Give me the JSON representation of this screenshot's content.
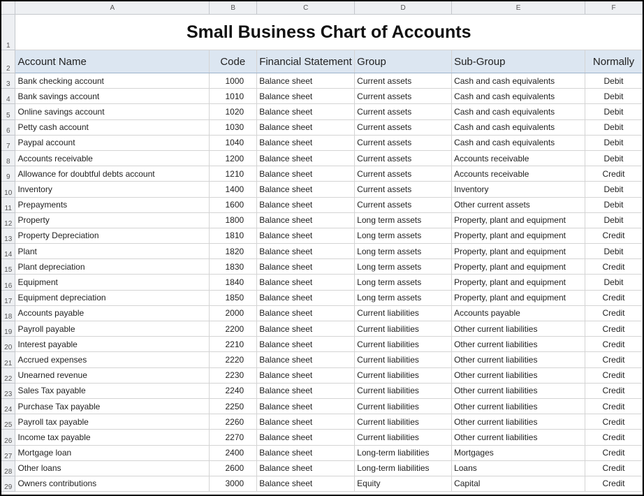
{
  "columns": [
    "A",
    "B",
    "C",
    "D",
    "E",
    "F"
  ],
  "title": "Small Business Chart of Accounts",
  "headers": [
    "Account Name",
    "Code",
    "Financial Statement",
    "Group",
    "Sub-Group",
    "Normally"
  ],
  "rows": [
    [
      "Bank checking account",
      "1000",
      "Balance sheet",
      "Current assets",
      "Cash and cash equivalents",
      "Debit"
    ],
    [
      "Bank savings account",
      "1010",
      "Balance sheet",
      "Current assets",
      "Cash and cash equivalents",
      "Debit"
    ],
    [
      "Online savings account",
      "1020",
      "Balance sheet",
      "Current assets",
      "Cash and cash equivalents",
      "Debit"
    ],
    [
      "Petty cash account",
      "1030",
      "Balance sheet",
      "Current assets",
      "Cash and cash equivalents",
      "Debit"
    ],
    [
      "Paypal account",
      "1040",
      "Balance sheet",
      "Current assets",
      "Cash and cash equivalents",
      "Debit"
    ],
    [
      "Accounts receivable",
      "1200",
      "Balance sheet",
      "Current assets",
      "Accounts receivable",
      "Debit"
    ],
    [
      "Allowance for doubtful debts account",
      "1210",
      "Balance sheet",
      "Current assets",
      "Accounts receivable",
      "Credit"
    ],
    [
      "Inventory",
      "1400",
      "Balance sheet",
      "Current assets",
      "Inventory",
      "Debit"
    ],
    [
      "Prepayments",
      "1600",
      "Balance sheet",
      "Current assets",
      "Other current assets",
      "Debit"
    ],
    [
      "Property",
      "1800",
      "Balance sheet",
      "Long term assets",
      "Property, plant and equipment",
      "Debit"
    ],
    [
      "Property Depreciation",
      "1810",
      "Balance sheet",
      "Long term assets",
      "Property, plant and equipment",
      "Credit"
    ],
    [
      "Plant",
      "1820",
      "Balance sheet",
      "Long term assets",
      "Property, plant and equipment",
      "Debit"
    ],
    [
      "Plant depreciation",
      "1830",
      "Balance sheet",
      "Long term assets",
      "Property, plant and equipment",
      "Credit"
    ],
    [
      "Equipment",
      "1840",
      "Balance sheet",
      "Long term assets",
      "Property, plant and equipment",
      "Debit"
    ],
    [
      "Equipment depreciation",
      "1850",
      "Balance sheet",
      "Long term assets",
      "Property, plant and equipment",
      "Credit"
    ],
    [
      "Accounts payable",
      "2000",
      "Balance sheet",
      "Current liabilities",
      "Accounts payable",
      "Credit"
    ],
    [
      "Payroll payable",
      "2200",
      "Balance sheet",
      "Current liabilities",
      "Other current liabilities",
      "Credit"
    ],
    [
      "Interest payable",
      "2210",
      "Balance sheet",
      "Current liabilities",
      "Other current liabilities",
      "Credit"
    ],
    [
      "Accrued expenses",
      "2220",
      "Balance sheet",
      "Current liabilities",
      "Other current liabilities",
      "Credit"
    ],
    [
      "Unearned revenue",
      "2230",
      "Balance sheet",
      "Current liabilities",
      "Other current liabilities",
      "Credit"
    ],
    [
      "Sales Tax payable",
      "2240",
      "Balance sheet",
      "Current liabilities",
      "Other current liabilities",
      "Credit"
    ],
    [
      "Purchase Tax payable",
      "2250",
      "Balance sheet",
      "Current liabilities",
      "Other current liabilities",
      "Credit"
    ],
    [
      "Payroll tax payable",
      "2260",
      "Balance sheet",
      "Current liabilities",
      "Other current liabilities",
      "Credit"
    ],
    [
      "Income tax payable",
      "2270",
      "Balance sheet",
      "Current liabilities",
      "Other current liabilities",
      "Credit"
    ],
    [
      "Mortgage loan",
      "2400",
      "Balance sheet",
      "Long-term liabilities",
      "Mortgages",
      "Credit"
    ],
    [
      "Other loans",
      "2600",
      "Balance sheet",
      "Long-term liabilities",
      "Loans",
      "Credit"
    ],
    [
      "Owners contributions",
      "3000",
      "Balance sheet",
      "Equity",
      "Capital",
      "Credit"
    ]
  ]
}
